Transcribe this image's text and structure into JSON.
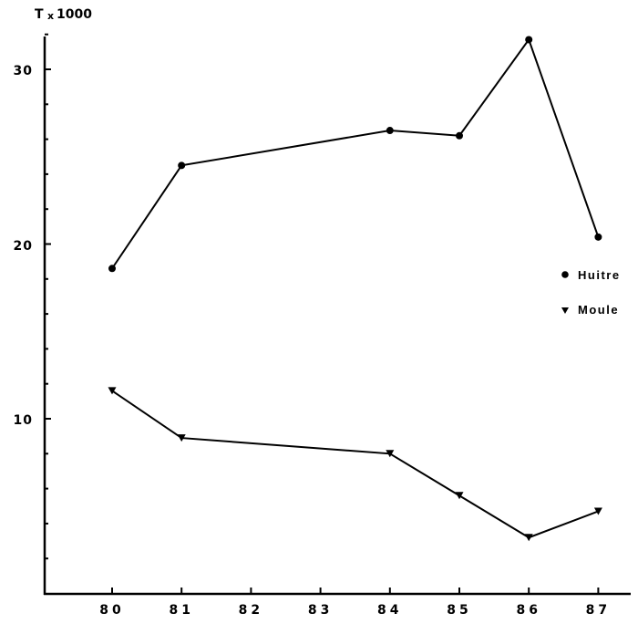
{
  "chart_data": {
    "type": "line",
    "title": "",
    "ylabel": "T x1000",
    "ylabel_parts": {
      "main": "T",
      "multiplier": "x1000"
    },
    "xlabel": "",
    "x": [
      80,
      81,
      84,
      85,
      86,
      87
    ],
    "x_ticks": [
      "80",
      "81",
      "82",
      "83",
      "84",
      "85",
      "86",
      "87"
    ],
    "y_ticks": [
      10,
      20,
      30
    ],
    "y_minor_step": 2,
    "ylim": [
      0,
      32
    ],
    "xlim": [
      79,
      87.5
    ],
    "grid": false,
    "legend_position": "right",
    "series": [
      {
        "name": "Huitre",
        "marker": "circle",
        "values": [
          18.6,
          24.5,
          26.5,
          26.2,
          31.7,
          20.4
        ]
      },
      {
        "name": "Moule",
        "marker": "triangle-down",
        "values": [
          11.6,
          8.9,
          8.0,
          5.6,
          3.2,
          4.7
        ]
      }
    ]
  },
  "axis": {
    "y_unit_main": "T",
    "y_unit_multiplier": "x1000",
    "y_labels": [
      "30",
      "20",
      "10"
    ],
    "x_labels": [
      "8 0",
      "81",
      "82",
      "83",
      "8 4",
      "85",
      "86",
      "87"
    ]
  },
  "legend": {
    "items": [
      {
        "label": "Huitre",
        "marker": "circle"
      },
      {
        "label": "Moule",
        "marker": "triangle-down"
      }
    ]
  },
  "colors": {
    "ink": "#000000",
    "background": "#ffffff"
  }
}
